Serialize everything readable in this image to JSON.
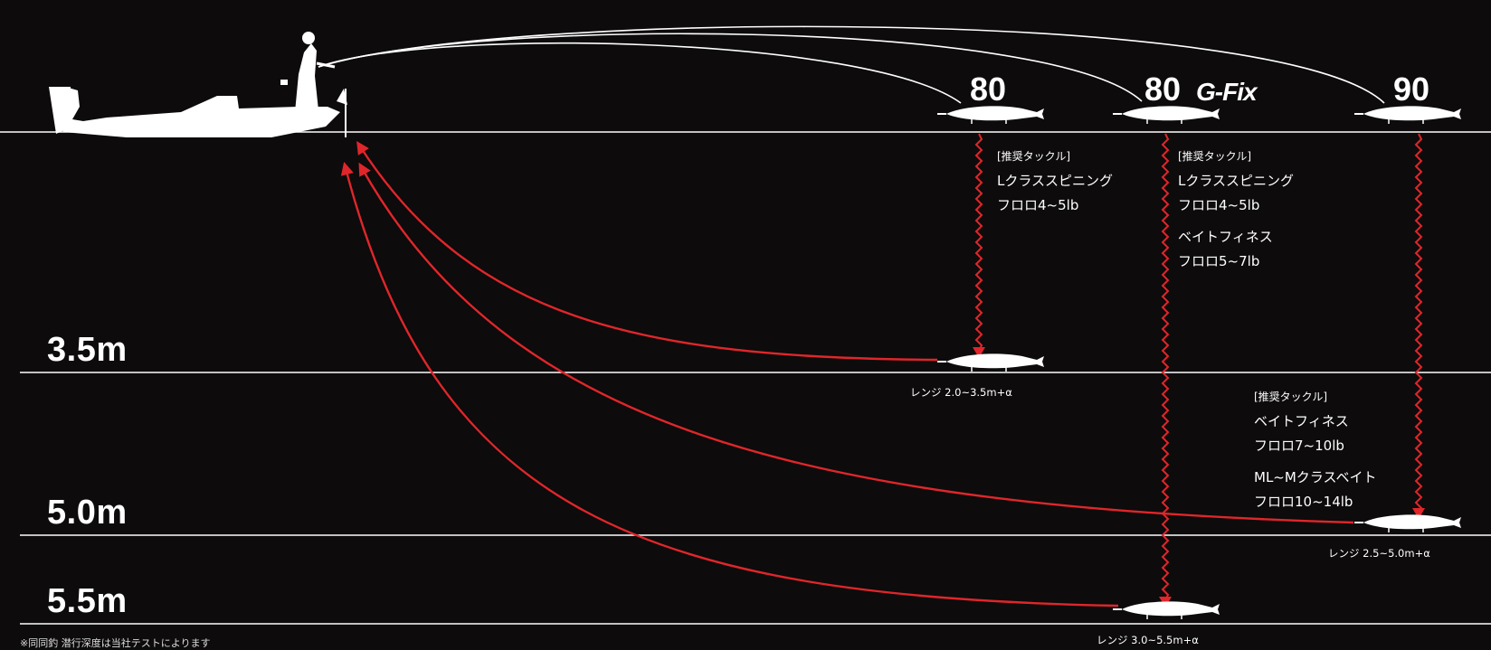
{
  "models": {
    "m80": "80",
    "m80g_num": "80",
    "m80g_suffix": "G-Fix",
    "m90": "90"
  },
  "depths": {
    "d1": "3.5m",
    "d2": "5.0m",
    "d3": "5.5m"
  },
  "tackle_80": {
    "header": "[推奨タックル]",
    "line1": "Lクラススピニング",
    "line2": "フロロ4~5lb"
  },
  "tackle_80g": {
    "header": "[推奨タックル]",
    "line1": "Lクラススピニング",
    "line2": "フロロ4~5lb",
    "line3": "ベイトフィネス",
    "line4": "フロロ5~7lb"
  },
  "tackle_90": {
    "header": "[推奨タックル]",
    "line1": "ベイトフィネス",
    "line2": "フロロ7~10lb",
    "line3": "ML~Mクラスベイト",
    "line4": "フロロ10~14lb"
  },
  "ranges": {
    "r80": "レンジ 2.0~3.5m+α",
    "r90": "レンジ 2.5~5.0m+α",
    "r80g": "レンジ 3.0~5.5m+α"
  },
  "footnote": "※同同釣 潜行深度は当社テストによります",
  "colors": {
    "background": "#0d0b0b",
    "line": "#ffffff",
    "retrieve": "#e0262b"
  }
}
